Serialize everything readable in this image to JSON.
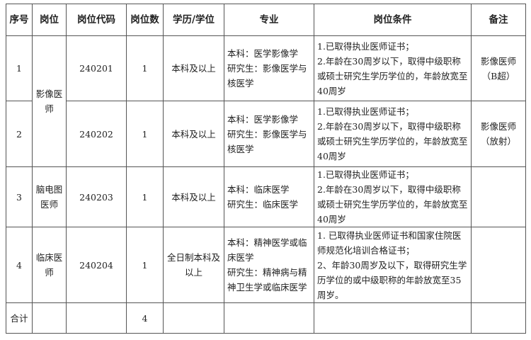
{
  "headers": [
    "序号",
    "岗位",
    "岗位代码",
    "岗位数",
    "学历/学位",
    "专业",
    "岗位条件",
    "备注"
  ],
  "rows": [
    {
      "no": "1",
      "position": "影像医师",
      "code": "240201",
      "count": "1",
      "degree": "本科及以上",
      "major": [
        "本科：医学影像学",
        "研究生：影像医学与核医学"
      ],
      "conditions": [
        "1.已取得执业医师证书；",
        "2.年龄在30周岁以下，取得中级职称或硕士研究生学历学位的，年龄放宽至40周岁"
      ],
      "note": "影像医师（B超）"
    },
    {
      "no": "2",
      "code": "240202",
      "count": "1",
      "degree": "本科及以上",
      "major": [
        "本科：医学影像学",
        "研究生：影像医学与核医学"
      ],
      "conditions": [
        "1.已取得执业医师证书；",
        "2.年龄在30周岁以下，取得中级职称或硕士研究生学历学位的，年龄放宽至40周岁"
      ],
      "note": "影像医师（放射）"
    },
    {
      "no": "3",
      "position": "脑电图医师",
      "code": "240203",
      "count": "1",
      "degree": "本科及以上",
      "major": [
        "本科：临床医学",
        "研究生：临床医学"
      ],
      "conditions": [
        "1.已取得执业医师证书；",
        "2.年龄在30周岁以下，取得中级职称或硕士研究生学历学位的，年龄放宽至40周岁"
      ],
      "note": ""
    },
    {
      "no": "4",
      "position": "临床医师",
      "code": "240204",
      "count": "1",
      "degree": "全日制本科及以上",
      "major": [
        "本科：精神医学或临床医学",
        "研究生：精神病与精神卫生学或临床医学"
      ],
      "conditions": [
        "1. 已取得执业医师证书和国家住院医师规范化培训合格证书；",
        "2、年龄30周岁及以下，取得研究生学历学位的或中级职称的年龄放宽至35周岁。"
      ],
      "note": ""
    }
  ],
  "total": {
    "label": "合计",
    "count": "4"
  }
}
